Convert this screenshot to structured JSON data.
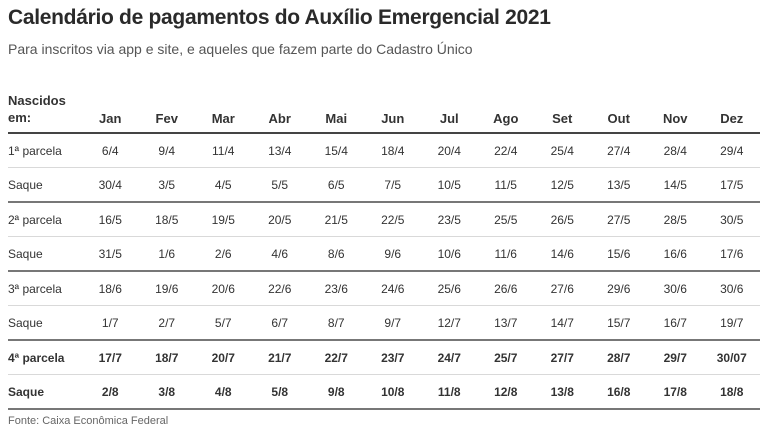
{
  "title": "Calendário de pagamentos do Auxílio Emergencial 2021",
  "subtitle": "Para inscritos via app e site, e aqueles que fazem parte do Cadastro Único",
  "table": {
    "corner_label_line1": "Nascidos",
    "corner_label_line2": "em:",
    "months": [
      "Jan",
      "Fev",
      "Mar",
      "Abr",
      "Mai",
      "Jun",
      "Jul",
      "Ago",
      "Set",
      "Out",
      "Nov",
      "Dez"
    ],
    "rows": [
      {
        "label": "1ª parcela",
        "values": [
          "6/4",
          "9/4",
          "11/4",
          "13/4",
          "15/4",
          "18/4",
          "20/4",
          "22/4",
          "25/4",
          "27/4",
          "28/4",
          "29/4"
        ]
      },
      {
        "label": "Saque",
        "values": [
          "30/4",
          "3/5",
          "4/5",
          "5/5",
          "6/5",
          "7/5",
          "10/5",
          "11/5",
          "12/5",
          "13/5",
          "14/5",
          "17/5"
        ]
      },
      {
        "label": "2ª parcela",
        "values": [
          "16/5",
          "18/5",
          "19/5",
          "20/5",
          "21/5",
          "22/5",
          "23/5",
          "25/5",
          "26/5",
          "27/5",
          "28/5",
          "30/5"
        ]
      },
      {
        "label": "Saque",
        "values": [
          "31/5",
          "1/6",
          "2/6",
          "4/6",
          "8/6",
          "9/6",
          "10/6",
          "11/6",
          "14/6",
          "15/6",
          "16/6",
          "17/6"
        ]
      },
      {
        "label": "3ª parcela",
        "values": [
          "18/6",
          "19/6",
          "20/6",
          "22/6",
          "23/6",
          "24/6",
          "25/6",
          "26/6",
          "27/6",
          "29/6",
          "30/6",
          "30/6"
        ]
      },
      {
        "label": "Saque",
        "values": [
          "1/7",
          "2/7",
          "5/7",
          "6/7",
          "8/7",
          "9/7",
          "12/7",
          "13/7",
          "14/7",
          "15/7",
          "16/7",
          "19/7"
        ]
      },
      {
        "label": "4ª parcela",
        "values": [
          "17/7",
          "18/7",
          "20/7",
          "21/7",
          "22/7",
          "23/7",
          "24/7",
          "25/7",
          "27/7",
          "28/7",
          "29/7",
          "30/07"
        ]
      },
      {
        "label": "Saque",
        "values": [
          "2/8",
          "3/8",
          "4/8",
          "5/8",
          "9/8",
          "10/8",
          "11/8",
          "12/8",
          "13/8",
          "16/8",
          "17/8",
          "18/8"
        ]
      }
    ]
  },
  "source": "Fonte: Caixa Econômica Federal"
}
